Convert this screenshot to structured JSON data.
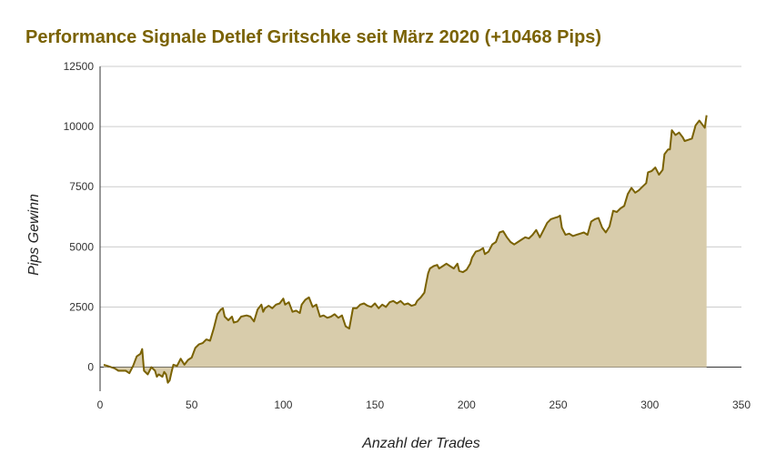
{
  "colors": {
    "title": "#7a6202",
    "line": "#7a6202",
    "fill": "#d8ccab",
    "grid": "#cccccc",
    "axis": "#333333"
  },
  "chart_data": {
    "type": "area",
    "title": "Performance Signale Detlef Gritschke seit März 2020 (+10468 Pips)",
    "xlabel": "Anzahl der Trades",
    "ylabel": "Pips  Gewinn",
    "xlim": [
      0,
      350
    ],
    "ylim": [
      -1000,
      12500
    ],
    "x_ticks": [
      0,
      50,
      100,
      150,
      200,
      250,
      300,
      350
    ],
    "x_tick_labels": [
      "0",
      "50",
      "100",
      "150",
      "200",
      "250",
      "300",
      "350"
    ],
    "y_ticks": [
      0,
      2500,
      5000,
      7500,
      10000,
      12500
    ],
    "y_tick_labels": [
      "0",
      "2500",
      "5000",
      "7500",
      "10000",
      "12500"
    ],
    "grid": true,
    "legend": "none",
    "series": [
      {
        "points": [
          [
            2,
            100
          ],
          [
            4,
            50
          ],
          [
            6,
            0
          ],
          [
            8,
            -50
          ],
          [
            10,
            -150
          ],
          [
            12,
            -150
          ],
          [
            14,
            -150
          ],
          [
            16,
            -250
          ],
          [
            18,
            50
          ],
          [
            20,
            450
          ],
          [
            22,
            550
          ],
          [
            23,
            750
          ],
          [
            24,
            -150
          ],
          [
            26,
            -300
          ],
          [
            28,
            0
          ],
          [
            30,
            -150
          ],
          [
            31,
            -400
          ],
          [
            32,
            -300
          ],
          [
            34,
            -400
          ],
          [
            35,
            -200
          ],
          [
            36,
            -300
          ],
          [
            37,
            -650
          ],
          [
            38,
            -550
          ],
          [
            39,
            -200
          ],
          [
            40,
            100
          ],
          [
            42,
            50
          ],
          [
            44,
            350
          ],
          [
            46,
            100
          ],
          [
            48,
            300
          ],
          [
            50,
            400
          ],
          [
            52,
            800
          ],
          [
            54,
            950
          ],
          [
            56,
            1000
          ],
          [
            58,
            1150
          ],
          [
            60,
            1100
          ],
          [
            62,
            1600
          ],
          [
            64,
            2200
          ],
          [
            65,
            2300
          ],
          [
            66,
            2400
          ],
          [
            67,
            2450
          ],
          [
            68,
            2100
          ],
          [
            70,
            1950
          ],
          [
            72,
            2100
          ],
          [
            73,
            1850
          ],
          [
            75,
            1900
          ],
          [
            77,
            2100
          ],
          [
            80,
            2150
          ],
          [
            82,
            2100
          ],
          [
            84,
            1900
          ],
          [
            86,
            2400
          ],
          [
            88,
            2600
          ],
          [
            89,
            2300
          ],
          [
            90,
            2450
          ],
          [
            92,
            2550
          ],
          [
            94,
            2450
          ],
          [
            96,
            2600
          ],
          [
            98,
            2650
          ],
          [
            100,
            2850
          ],
          [
            101,
            2600
          ],
          [
            103,
            2700
          ],
          [
            105,
            2300
          ],
          [
            107,
            2350
          ],
          [
            109,
            2250
          ],
          [
            110,
            2600
          ],
          [
            112,
            2800
          ],
          [
            114,
            2900
          ],
          [
            116,
            2500
          ],
          [
            118,
            2600
          ],
          [
            120,
            2100
          ],
          [
            122,
            2150
          ],
          [
            124,
            2050
          ],
          [
            126,
            2100
          ],
          [
            128,
            2200
          ],
          [
            130,
            2050
          ],
          [
            132,
            2150
          ],
          [
            134,
            1700
          ],
          [
            136,
            1600
          ],
          [
            138,
            2450
          ],
          [
            140,
            2450
          ],
          [
            142,
            2600
          ],
          [
            144,
            2650
          ],
          [
            146,
            2550
          ],
          [
            148,
            2500
          ],
          [
            150,
            2650
          ],
          [
            152,
            2450
          ],
          [
            154,
            2600
          ],
          [
            156,
            2500
          ],
          [
            158,
            2700
          ],
          [
            160,
            2750
          ],
          [
            162,
            2650
          ],
          [
            164,
            2750
          ],
          [
            166,
            2600
          ],
          [
            168,
            2650
          ],
          [
            170,
            2550
          ],
          [
            172,
            2600
          ],
          [
            173,
            2750
          ],
          [
            175,
            2900
          ],
          [
            177,
            3100
          ],
          [
            178,
            3500
          ],
          [
            179,
            3900
          ],
          [
            180,
            4100
          ],
          [
            182,
            4200
          ],
          [
            184,
            4250
          ],
          [
            185,
            4100
          ],
          [
            187,
            4200
          ],
          [
            189,
            4300
          ],
          [
            191,
            4200
          ],
          [
            193,
            4100
          ],
          [
            195,
            4300
          ],
          [
            196,
            4000
          ],
          [
            198,
            3950
          ],
          [
            200,
            4050
          ],
          [
            202,
            4300
          ],
          [
            203,
            4550
          ],
          [
            205,
            4800
          ],
          [
            207,
            4850
          ],
          [
            209,
            4950
          ],
          [
            210,
            4700
          ],
          [
            212,
            4800
          ],
          [
            214,
            5100
          ],
          [
            216,
            5200
          ],
          [
            218,
            5600
          ],
          [
            220,
            5650
          ],
          [
            222,
            5400
          ],
          [
            224,
            5200
          ],
          [
            226,
            5100
          ],
          [
            228,
            5200
          ],
          [
            230,
            5300
          ],
          [
            232,
            5400
          ],
          [
            234,
            5350
          ],
          [
            236,
            5500
          ],
          [
            238,
            5700
          ],
          [
            240,
            5400
          ],
          [
            242,
            5700
          ],
          [
            244,
            6000
          ],
          [
            246,
            6150
          ],
          [
            248,
            6200
          ],
          [
            250,
            6250
          ],
          [
            251,
            6300
          ],
          [
            252,
            5800
          ],
          [
            254,
            5500
          ],
          [
            256,
            5550
          ],
          [
            258,
            5450
          ],
          [
            260,
            5500
          ],
          [
            262,
            5550
          ],
          [
            264,
            5600
          ],
          [
            266,
            5500
          ],
          [
            268,
            6050
          ],
          [
            270,
            6150
          ],
          [
            272,
            6200
          ],
          [
            274,
            5800
          ],
          [
            276,
            5600
          ],
          [
            278,
            5850
          ],
          [
            280,
            6500
          ],
          [
            282,
            6450
          ],
          [
            284,
            6600
          ],
          [
            286,
            6700
          ],
          [
            288,
            7200
          ],
          [
            290,
            7450
          ],
          [
            292,
            7250
          ],
          [
            294,
            7350
          ],
          [
            296,
            7500
          ],
          [
            298,
            7650
          ],
          [
            299,
            8100
          ],
          [
            301,
            8150
          ],
          [
            303,
            8300
          ],
          [
            305,
            8000
          ],
          [
            307,
            8200
          ],
          [
            308,
            8850
          ],
          [
            310,
            9050
          ],
          [
            311,
            9050
          ],
          [
            312,
            9850
          ],
          [
            314,
            9650
          ],
          [
            316,
            9750
          ],
          [
            318,
            9550
          ],
          [
            319,
            9400
          ],
          [
            321,
            9450
          ],
          [
            323,
            9500
          ],
          [
            325,
            10050
          ],
          [
            327,
            10250
          ],
          [
            329,
            10050
          ],
          [
            330,
            9950
          ],
          [
            331,
            10468
          ]
        ]
      }
    ]
  }
}
